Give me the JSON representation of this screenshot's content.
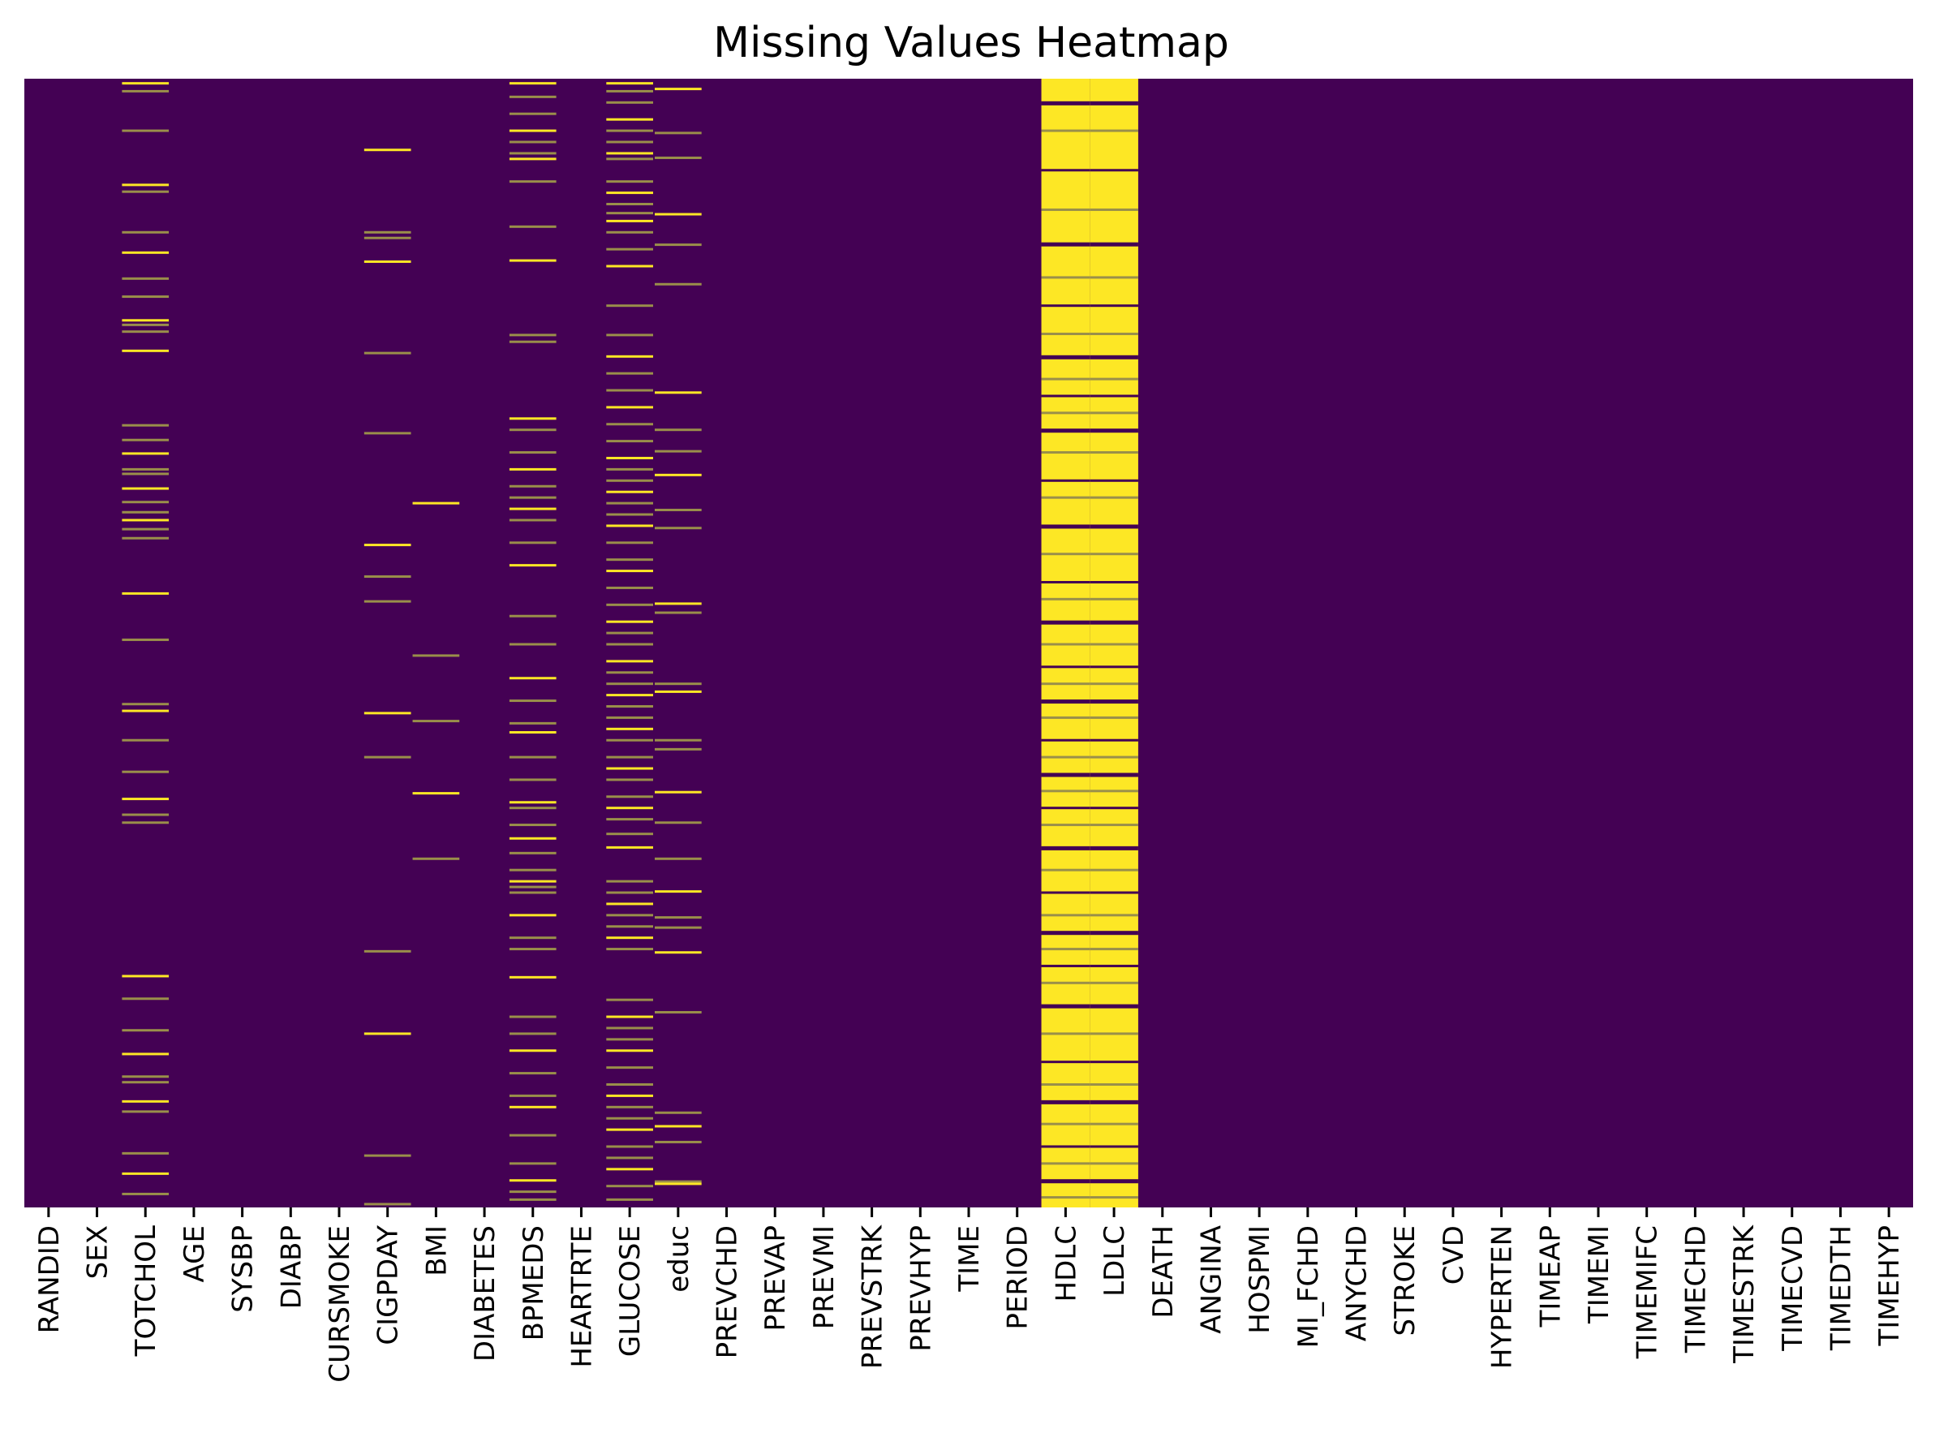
{
  "chart_data": {
    "type": "heatmap",
    "title": "Missing Values Heatmap",
    "xlabel": "",
    "ylabel": "",
    "colorbar": false,
    "colormap": "viridis",
    "colors": {
      "present": "#440154",
      "missing": "#fde725",
      "partial": "#9a8f4a"
    },
    "columns": [
      "RANDID",
      "SEX",
      "TOTCHOL",
      "AGE",
      "SYSBP",
      "DIABP",
      "CURSMOKE",
      "CIGPDAY",
      "BMI",
      "DIABETES",
      "BPMEDS",
      "HEARTRTE",
      "GLUCOSE",
      "educ",
      "PREVCHD",
      "PREVAP",
      "PREVMI",
      "PREVSTRK",
      "PREVHYP",
      "TIME",
      "PERIOD",
      "HDLC",
      "LDLC",
      "DEATH",
      "ANGINA",
      "HOSPMI",
      "MI_FCHD",
      "ANYCHD",
      "STROKE",
      "CVD",
      "HYPERTEN",
      "TIMEAP",
      "TIMEMI",
      "TIMEMIFC",
      "TIMECHD",
      "TIMESTRK",
      "TIMECVD",
      "TIMEDTH",
      "TIMEHYP"
    ],
    "row_range": [
      0,
      1
    ],
    "missing_rows": {
      "TOTCHOL": [
        0.003,
        0.01,
        0.045,
        0.093,
        0.099,
        0.135,
        0.153,
        0.176,
        0.192,
        0.213,
        0.217,
        0.223,
        0.24,
        0.306,
        0.319,
        0.331,
        0.345,
        0.349,
        0.362,
        0.374,
        0.383,
        0.39,
        0.398,
        0.406,
        0.455,
        0.496,
        0.553,
        0.559,
        0.585,
        0.613,
        0.637,
        0.651,
        0.658,
        0.794,
        0.814,
        0.842,
        0.863,
        0.883,
        0.888,
        0.905,
        0.914,
        0.951,
        0.969,
        0.987
      ],
      "CIGPDAY": [
        0.062,
        0.135,
        0.14,
        0.161,
        0.242,
        0.313,
        0.412,
        0.44,
        0.462,
        0.561,
        0.6,
        0.772,
        0.845,
        0.953,
        0.996
      ],
      "BMI": [
        0.375,
        0.51,
        0.568,
        0.632,
        0.69
      ],
      "BPMEDS": [
        0.003,
        0.015,
        0.03,
        0.045,
        0.055,
        0.065,
        0.07,
        0.09,
        0.13,
        0.16,
        0.226,
        0.232,
        0.3,
        0.31,
        0.33,
        0.345,
        0.36,
        0.37,
        0.38,
        0.39,
        0.41,
        0.43,
        0.475,
        0.5,
        0.53,
        0.55,
        0.57,
        0.578,
        0.6,
        0.62,
        0.64,
        0.645,
        0.66,
        0.672,
        0.685,
        0.7,
        0.71,
        0.715,
        0.72,
        0.74,
        0.76,
        0.77,
        0.795,
        0.83,
        0.845,
        0.86,
        0.88,
        0.9,
        0.91,
        0.935,
        0.96,
        0.975,
        0.985,
        0.992
      ],
      "GLUCOSE": [
        0.003,
        0.01,
        0.02,
        0.035,
        0.045,
        0.055,
        0.065,
        0.07,
        0.09,
        0.1,
        0.11,
        0.118,
        0.125,
        0.135,
        0.15,
        0.165,
        0.2,
        0.226,
        0.245,
        0.26,
        0.275,
        0.29,
        0.305,
        0.32,
        0.335,
        0.345,
        0.355,
        0.365,
        0.375,
        0.385,
        0.395,
        0.41,
        0.425,
        0.435,
        0.45,
        0.465,
        0.48,
        0.49,
        0.5,
        0.515,
        0.525,
        0.535,
        0.545,
        0.555,
        0.565,
        0.575,
        0.585,
        0.6,
        0.61,
        0.62,
        0.635,
        0.645,
        0.655,
        0.668,
        0.68,
        0.71,
        0.72,
        0.73,
        0.74,
        0.75,
        0.76,
        0.77,
        0.815,
        0.83,
        0.84,
        0.85,
        0.86,
        0.875,
        0.89,
        0.9,
        0.91,
        0.92,
        0.93,
        0.945,
        0.955,
        0.965,
        0.98,
        0.992
      ],
      "educ": [
        0.008,
        0.047,
        0.069,
        0.119,
        0.146,
        0.181,
        0.277,
        0.31,
        0.329,
        0.35,
        0.381,
        0.397,
        0.464,
        0.472,
        0.535,
        0.542,
        0.585,
        0.593,
        0.631,
        0.658,
        0.69,
        0.719,
        0.742,
        0.751,
        0.773,
        0.826,
        0.915,
        0.927,
        0.941,
        0.976,
        0.978
      ],
      "HDLC": {
        "missing_fraction": 0.9,
        "present_rows": [
          0.02,
          0.045,
          0.08,
          0.115,
          0.145,
          0.175,
          0.2,
          0.225,
          0.245,
          0.265,
          0.28,
          0.295,
          0.31,
          0.33,
          0.355,
          0.37,
          0.395,
          0.42,
          0.445,
          0.46,
          0.48,
          0.5,
          0.52,
          0.535,
          0.55,
          0.565,
          0.585,
          0.6,
          0.615,
          0.63,
          0.645,
          0.66,
          0.68,
          0.7,
          0.72,
          0.74,
          0.755,
          0.77,
          0.785,
          0.8,
          0.82,
          0.845,
          0.87,
          0.89,
          0.905,
          0.925,
          0.945,
          0.96,
          0.975,
          0.99
        ]
      },
      "LDLC": {
        "missing_fraction": 0.9,
        "same_as": "HDLC"
      }
    }
  }
}
